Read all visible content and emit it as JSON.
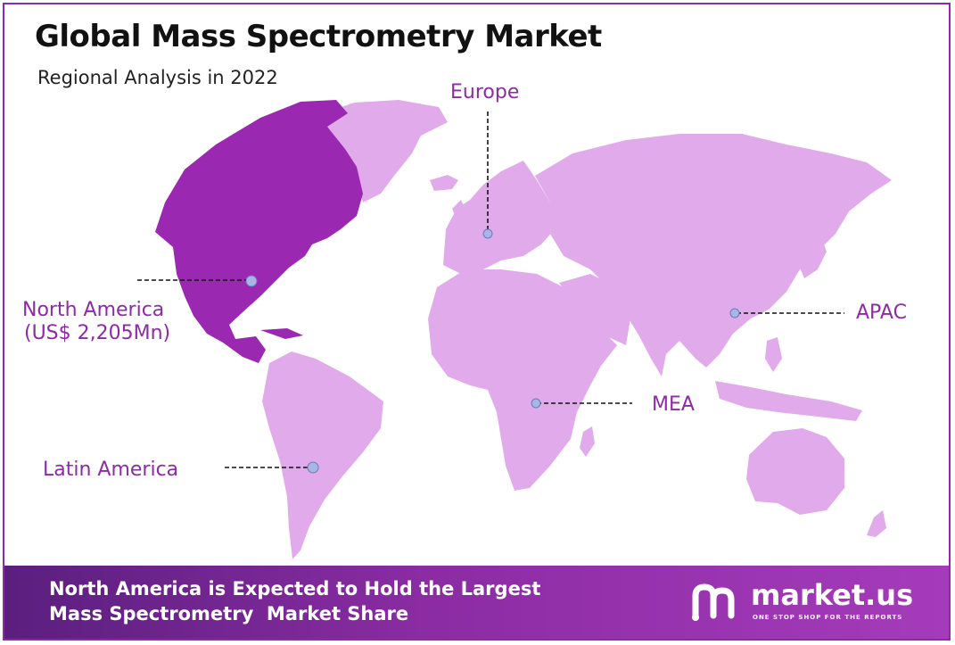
{
  "title": "Global Mass Spectrometry Market",
  "subtitle": "Regional Analysis in 2022",
  "colors": {
    "highlight_region": "#9b28b0",
    "other_regions": "#e1abeb",
    "label_text": "#8e2aa6",
    "marker": "#a7b6e4",
    "footer_start": "#5a1f7e",
    "footer_end": "#a53bba"
  },
  "regions": [
    {
      "id": "north-america",
      "label": "North America",
      "value_label": "(US$ 2,205Mn)",
      "highlighted": true
    },
    {
      "id": "europe",
      "label": "Europe",
      "highlighted": false
    },
    {
      "id": "apac",
      "label": "APAC",
      "highlighted": false
    },
    {
      "id": "mea",
      "label": "MEA",
      "highlighted": false
    },
    {
      "id": "latin-america",
      "label": "Latin America",
      "highlighted": false
    }
  ],
  "footer": {
    "line1": "North America is Expected to Hold the Largest",
    "line2": "Mass Spectrometry  Market Share"
  },
  "brand": {
    "name": "market.us",
    "tagline": "ONE STOP SHOP FOR THE REPORTS",
    "icon": "market-us-logo-icon"
  }
}
